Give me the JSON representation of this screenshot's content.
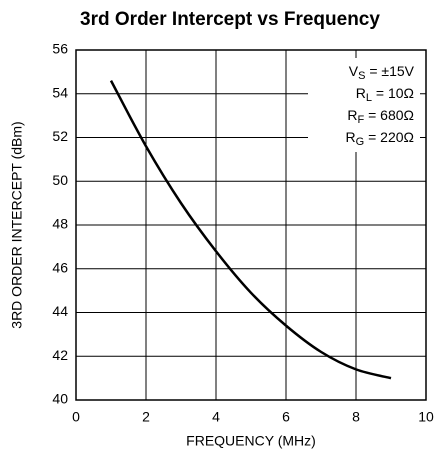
{
  "chart_data": {
    "type": "line",
    "title": "3rd Order Intercept vs Frequency",
    "xlabel": "FREQUENCY (MHz)",
    "ylabel": "3RD ORDER INTERCEPT (dBm)",
    "x": [
      1,
      2,
      3,
      4,
      5,
      6,
      7,
      8,
      9
    ],
    "values": [
      54.6,
      51.6,
      49.0,
      46.8,
      44.9,
      43.4,
      42.2,
      41.4,
      41.0
    ],
    "color": "#000000",
    "xlim": [
      0,
      10
    ],
    "xticks": [
      0,
      2,
      4,
      6,
      8,
      10
    ],
    "ylim": [
      40,
      56
    ],
    "yticks": [
      40,
      42,
      44,
      46,
      48,
      50,
      52,
      54,
      56
    ],
    "grid": true,
    "annotations": [
      [
        "V",
        "S",
        " = ±15V"
      ],
      [
        "R",
        "L",
        " = 10Ω"
      ],
      [
        "R",
        "F",
        " = 680Ω"
      ],
      [
        "R",
        "G",
        " = 220Ω"
      ]
    ]
  }
}
